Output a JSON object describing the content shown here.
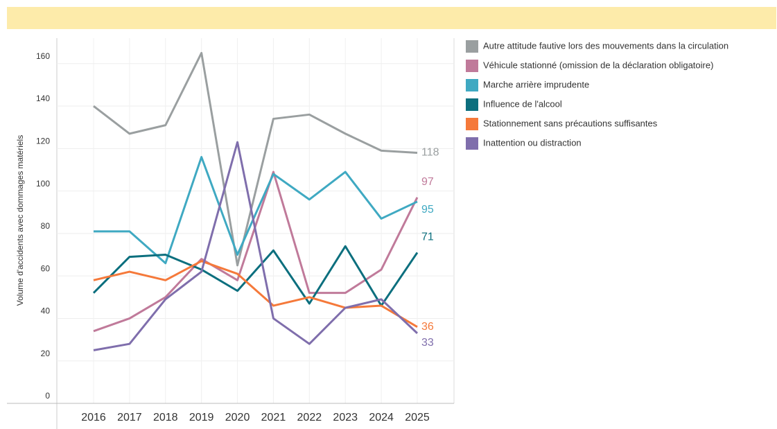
{
  "chart_data": {
    "type": "line",
    "y_label": "Volume d'accidents avec dommages matériels",
    "categories": [
      "2016",
      "2017",
      "2018",
      "2019",
      "2020",
      "2021",
      "2022",
      "2023",
      "2024",
      "2025"
    ],
    "ylim": [
      0,
      172
    ],
    "yticks": [
      0,
      20,
      40,
      60,
      80,
      100,
      120,
      140,
      160
    ],
    "grid": true,
    "legend": "right",
    "series": [
      {
        "name": "Autre attitude fautive lors des mouvements dans la circulation",
        "color": "#9a9fa0",
        "values": [
          140,
          127,
          131,
          165,
          65,
          134,
          136,
          127,
          119,
          118
        ]
      },
      {
        "name": "Véhicule stationné (omission de la déclaration obligatoire)",
        "color": "#c07a9a",
        "values": [
          34,
          40,
          50,
          68,
          58,
          109,
          52,
          52,
          63,
          97
        ]
      },
      {
        "name": "Marche arrière imprudente",
        "color": "#3fa9c2",
        "values": [
          81,
          81,
          66,
          116,
          70,
          108,
          96,
          109,
          87,
          95
        ]
      },
      {
        "name": "Influence de l'alcool",
        "color": "#0c6f7e",
        "values": [
          52,
          69,
          70,
          63,
          53,
          72,
          47,
          74,
          46,
          71
        ]
      },
      {
        "name": "Stationnement sans précautions suffisantes",
        "color": "#f5793a",
        "values": [
          58,
          62,
          58,
          67,
          61,
          46,
          50,
          45,
          46,
          36
        ]
      },
      {
        "name": "Inattention ou distraction",
        "color": "#7f6eac",
        "values": [
          25,
          28,
          49,
          62,
          123,
          40,
          28,
          45,
          49,
          33
        ]
      }
    ]
  }
}
